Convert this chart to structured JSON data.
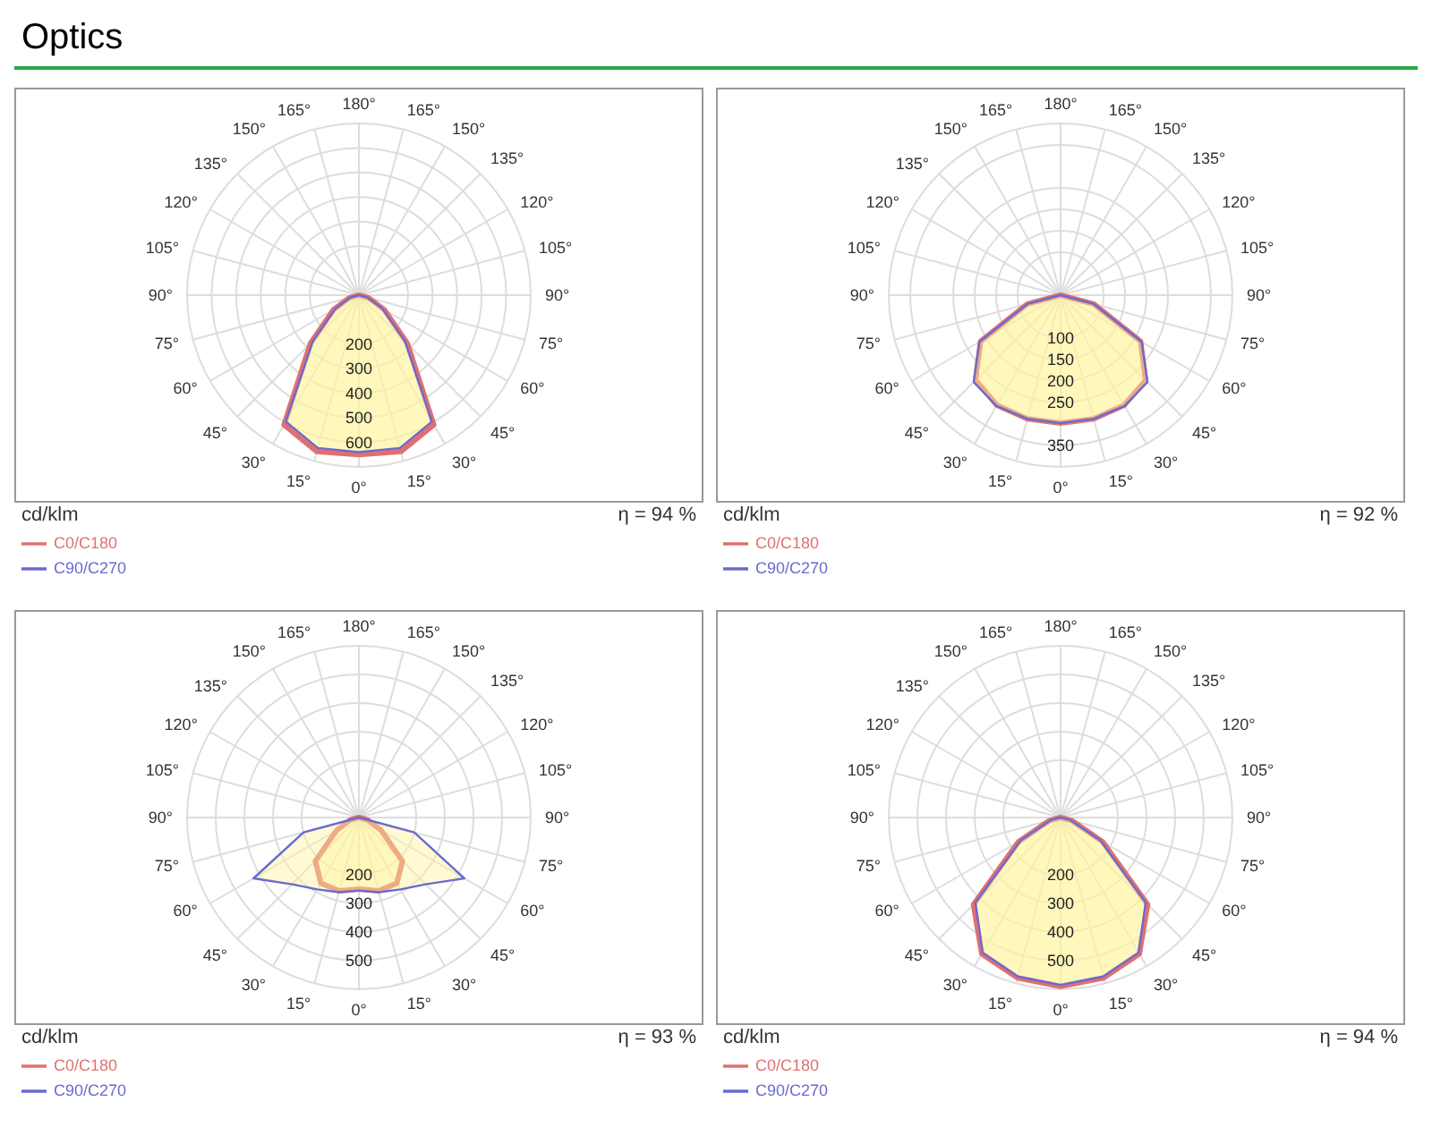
{
  "chart_data": [
    {
      "type": "radar",
      "title": "Optics",
      "categories": [
        "180°",
        "165°",
        "150°",
        "135°",
        "120°",
        "105°",
        "90°",
        "75°",
        "60°",
        "45°",
        "30°",
        "15°",
        "0°",
        "15°",
        "30°",
        "45°",
        "60°",
        "75°",
        "90°",
        "105°",
        "120°",
        "135°",
        "150°",
        "165°"
      ],
      "ylim": [
        0,
        700
      ],
      "yticks": [
        200,
        300,
        400,
        500,
        600
      ],
      "grid": true,
      "legend": "bottom left",
      "annotations": [
        "cd/klm",
        "η = 94 %"
      ],
      "series": [
        {
          "name": "C0/C180",
          "color": "#e07070",
          "values": [
            0,
            0,
            0,
            0,
            0,
            0,
            0,
            40,
            120,
            280,
            610,
            660,
            650,
            660,
            610,
            280,
            120,
            40,
            0,
            0,
            0,
            0,
            0,
            0
          ]
        },
        {
          "name": "C90/C270",
          "color": "#6a6ad0",
          "values": [
            0,
            0,
            0,
            0,
            0,
            0,
            0,
            35,
            110,
            265,
            595,
            645,
            640,
            645,
            595,
            265,
            110,
            35,
            0,
            0,
            0,
            0,
            0,
            0
          ]
        }
      ]
    },
    {
      "type": "radar",
      "categories": [
        "180°",
        "165°",
        "150°",
        "135°",
        "120°",
        "105°",
        "90°",
        "75°",
        "60°",
        "45°",
        "30°",
        "15°",
        "0°",
        "15°",
        "30°",
        "45°",
        "60°",
        "75°",
        "90°",
        "105°",
        "120°",
        "135°",
        "150°",
        "165°"
      ],
      "ylim": [
        0,
        400
      ],
      "yticks": [
        100,
        150,
        200,
        250,
        350
      ],
      "grid": true,
      "legend": "bottom left",
      "annotations": [
        "cd/klm",
        "η = 92 %"
      ],
      "series": [
        {
          "name": "C0/C180",
          "color": "#e07070",
          "values": [
            0,
            0,
            0,
            0,
            0,
            0,
            0,
            80,
            215,
            280,
            296,
            298,
            298,
            298,
            296,
            280,
            215,
            80,
            0,
            0,
            0,
            0,
            0,
            0
          ]
        },
        {
          "name": "C90/C270",
          "color": "#6a6ad0",
          "values": [
            0,
            0,
            0,
            0,
            0,
            0,
            0,
            80,
            218,
            286,
            298,
            298,
            298,
            298,
            298,
            286,
            218,
            80,
            0,
            0,
            0,
            0,
            0,
            0
          ]
        }
      ]
    },
    {
      "type": "radar",
      "categories": [
        "180°",
        "165°",
        "150°",
        "135°",
        "120°",
        "105°",
        "90°",
        "75°",
        "60°",
        "45°",
        "30°",
        "15°",
        "0°",
        "15°",
        "30°",
        "45°",
        "60°",
        "75°",
        "90°",
        "105°",
        "120°",
        "135°",
        "150°",
        "165°"
      ],
      "ylim": [
        0,
        600
      ],
      "yticks": [
        200,
        300,
        400,
        500
      ],
      "grid": true,
      "legend": "bottom left",
      "annotations": [
        "cd/klm",
        "η = 93 %"
      ],
      "series": [
        {
          "name": "C0/C180",
          "color": "#e07070",
          "values": [
            0,
            0,
            0,
            0,
            0,
            0,
            0,
            30,
            90,
            215,
            265,
            265,
            250,
            265,
            265,
            215,
            90,
            30,
            0,
            0,
            0,
            0,
            0,
            0
          ]
        },
        {
          "name": "C90/C270",
          "color": "#6a6ad0",
          "values": [
            0,
            0,
            0,
            0,
            0,
            0,
            0,
            200,
            425,
            330,
            290,
            270,
            255,
            270,
            290,
            330,
            425,
            200,
            0,
            0,
            0,
            0,
            0,
            0
          ]
        }
      ]
    },
    {
      "type": "radar",
      "categories": [
        "180°",
        "165°",
        "150°",
        "135°",
        "120°",
        "105°",
        "90°",
        "75°",
        "60°",
        "45°",
        "30°",
        "15°",
        "0°",
        "15°",
        "30°",
        "45°",
        "60°",
        "75°",
        "90°",
        "105°",
        "120°",
        "135°",
        "150°",
        "165°"
      ],
      "ylim": [
        0,
        600
      ],
      "yticks": [
        200,
        300,
        400,
        500
      ],
      "grid": true,
      "legend": "bottom left",
      "annotations": [
        "cd/klm",
        "η = 94 %"
      ],
      "series": [
        {
          "name": "C0/C180",
          "color": "#e07070",
          "values": [
            0,
            0,
            0,
            0,
            0,
            0,
            0,
            40,
            170,
            430,
            550,
            580,
            590,
            580,
            550,
            430,
            170,
            40,
            0,
            0,
            0,
            0,
            0,
            0
          ]
        },
        {
          "name": "C90/C270",
          "color": "#6a6ad0",
          "values": [
            0,
            0,
            0,
            0,
            0,
            0,
            0,
            35,
            160,
            420,
            545,
            575,
            585,
            575,
            545,
            420,
            160,
            35,
            0,
            0,
            0,
            0,
            0,
            0
          ]
        }
      ]
    }
  ]
}
